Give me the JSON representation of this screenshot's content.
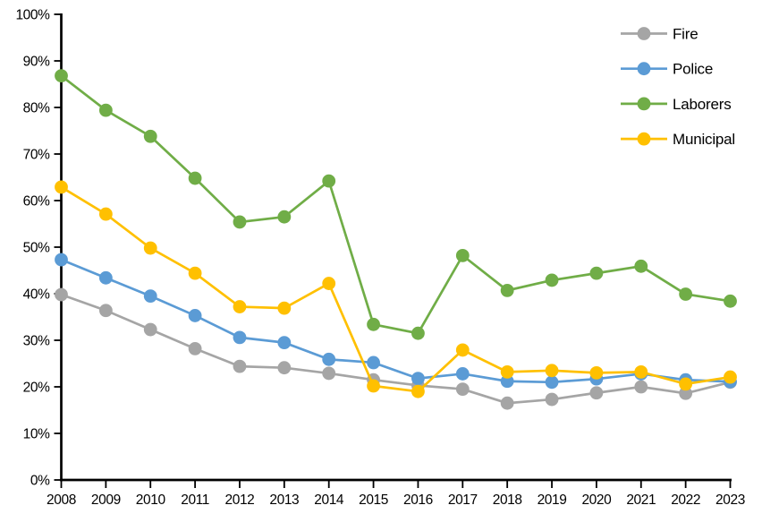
{
  "chart_data": {
    "type": "line",
    "title": "",
    "xlabel": "",
    "ylabel": "",
    "x_labels": [
      "2008",
      "2009",
      "2010",
      "2011",
      "2012",
      "2013",
      "2014",
      "2015",
      "2016",
      "2017",
      "2018",
      "2019",
      "2020",
      "2021",
      "2022",
      "2023"
    ],
    "ylim": [
      0,
      100
    ],
    "ytick_labels": [
      "0%",
      "10%",
      "20%",
      "30%",
      "40%",
      "50%",
      "60%",
      "70%",
      "80%",
      "90%",
      "100%"
    ],
    "grid": false,
    "legend_position": "top-right",
    "axis_color": "#000000",
    "background_color": "#FFFFFF",
    "series": [
      {
        "name": "Fire",
        "color": "#A5A5A5",
        "values": [
          39.8,
          36.4,
          32.3,
          28.2,
          24.4,
          24.1,
          22.9,
          21.5,
          20.3,
          19.5,
          16.5,
          17.3,
          18.7,
          20.0,
          18.6,
          21.0
        ]
      },
      {
        "name": "Police",
        "color": "#5B9BD5",
        "values": [
          47.3,
          43.4,
          39.5,
          35.3,
          30.6,
          29.5,
          25.9,
          25.2,
          21.8,
          22.8,
          21.2,
          21.0,
          21.7,
          22.8,
          21.5,
          21.1
        ]
      },
      {
        "name": "Laborers",
        "color": "#70AD47",
        "values": [
          86.8,
          79.4,
          73.8,
          64.8,
          55.4,
          56.5,
          64.2,
          33.4,
          31.5,
          48.2,
          40.7,
          42.9,
          44.4,
          45.9,
          39.9,
          38.4
        ]
      },
      {
        "name": "Municipal",
        "color": "#FFC000",
        "values": [
          62.9,
          57.1,
          49.8,
          44.4,
          37.2,
          36.9,
          42.2,
          20.2,
          19.0,
          27.9,
          23.2,
          23.5,
          23.0,
          23.2,
          20.6,
          22.1
        ]
      }
    ]
  }
}
